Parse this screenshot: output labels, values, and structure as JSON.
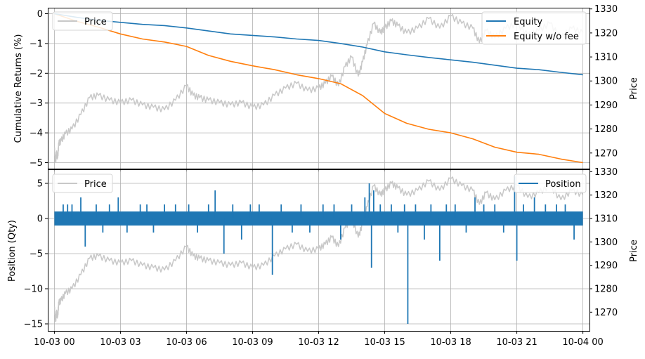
{
  "chart_data": [
    {
      "type": "line",
      "ylabel": "Cumulative Returns (%)",
      "y2label": "Price",
      "ylim": [
        -5.2,
        0.2
      ],
      "y2lim": [
        1263.5,
        1330.5
      ],
      "xlim": [
        -0.3,
        24.3
      ],
      "grid": true,
      "y_ticks": [
        0,
        -1,
        -2,
        -3,
        -4,
        -5
      ],
      "y_tick_labels": [
        "0",
        "−1",
        "−2",
        "−3",
        "−4",
        "−5"
      ],
      "y2_ticks": [
        1270,
        1280,
        1290,
        1300,
        1310,
        1320,
        1330
      ],
      "x_ticks": [
        0,
        3,
        6,
        9,
        12,
        15,
        18,
        21,
        24
      ],
      "legend_left": {
        "placement": "upper-left",
        "entries": [
          "Price"
        ]
      },
      "legend_right": {
        "placement": "upper-right",
        "entries": [
          "Equity",
          "Equity w/o fee"
        ]
      },
      "series": [
        {
          "name": "Equity",
          "axis": "left",
          "color": "#1f77b4",
          "x": [
            0,
            1,
            2,
            3,
            4,
            5,
            6,
            7,
            8,
            9,
            10,
            11,
            12,
            13,
            14,
            15,
            16,
            17,
            18,
            19,
            20,
            21,
            22,
            23,
            24
          ],
          "y": [
            0,
            -0.12,
            -0.22,
            -0.29,
            -0.36,
            -0.4,
            -0.48,
            -0.58,
            -0.68,
            -0.73,
            -0.78,
            -0.85,
            -0.9,
            -1.0,
            -1.12,
            -1.28,
            -1.38,
            -1.47,
            -1.55,
            -1.63,
            -1.73,
            -1.83,
            -1.88,
            -1.97,
            -2.05
          ]
        },
        {
          "name": "Equity w/o fee",
          "axis": "left",
          "color": "#ff7f0e",
          "x": [
            0,
            1,
            2,
            3,
            4,
            5,
            6,
            7,
            8,
            9,
            10,
            11,
            12,
            13,
            14,
            15,
            16,
            17,
            18,
            19,
            20,
            21,
            22,
            23,
            24
          ],
          "y": [
            0,
            -0.25,
            -0.45,
            -0.68,
            -0.85,
            -0.95,
            -1.1,
            -1.4,
            -1.6,
            -1.75,
            -1.88,
            -2.05,
            -2.18,
            -2.35,
            -2.75,
            -3.35,
            -3.68,
            -3.88,
            -4.0,
            -4.2,
            -4.48,
            -4.65,
            -4.72,
            -4.88,
            -5.0
          ]
        },
        {
          "name": "Price",
          "axis": "right",
          "color": "#c8c8c8",
          "x": [
            0,
            0.05,
            0.1,
            0.15,
            0.2,
            0.3,
            0.5,
            0.8,
            1.2,
            1.6,
            2.0,
            2.5,
            3.0,
            3.5,
            4.0,
            4.5,
            5.0,
            5.5,
            6.0,
            6.3,
            6.6,
            7.0,
            7.5,
            8.0,
            8.5,
            9.0,
            9.5,
            10.0,
            10.5,
            11.0,
            11.5,
            12.0,
            12.3,
            12.6,
            12.9,
            13.2,
            13.5,
            13.8,
            14.0,
            14.2,
            14.5,
            14.8,
            15.0,
            15.3,
            15.6,
            16.0,
            16.5,
            17.0,
            17.5,
            18.0,
            18.5,
            19.0,
            19.3,
            19.6,
            20.0,
            20.5,
            21.0,
            21.5,
            22.0,
            22.5,
            23.0,
            23.5,
            24.0
          ],
          "y": [
            1272,
            1266,
            1270,
            1268,
            1274,
            1275,
            1278,
            1280,
            1286,
            1293,
            1294,
            1292,
            1291,
            1292,
            1290,
            1289,
            1288,
            1292,
            1298,
            1294,
            1293,
            1292,
            1291,
            1290,
            1291,
            1289,
            1290,
            1294,
            1297,
            1299,
            1296,
            1297,
            1299,
            1302,
            1298,
            1306,
            1310,
            1302,
            1308,
            1315,
            1324,
            1320,
            1322,
            1325,
            1323,
            1320,
            1322,
            1326,
            1322,
            1327,
            1324,
            1322,
            1316,
            1321,
            1318,
            1322,
            1324,
            1319,
            1321,
            1324,
            1318,
            1322,
            1320
          ]
        }
      ]
    },
    {
      "type": "line",
      "ylabel": "Position (Qty)",
      "y2label": "Price",
      "ylim": [
        -16,
        7
      ],
      "y2lim": [
        1262,
        1331
      ],
      "xlim": [
        -0.3,
        24.3
      ],
      "grid": true,
      "y_ticks": [
        5,
        0,
        -5,
        -10,
        -15
      ],
      "y_tick_labels": [
        "5",
        "0",
        "−5",
        "−10",
        "−15"
      ],
      "y2_ticks": [
        1270,
        1280,
        1290,
        1300,
        1310,
        1320,
        1330
      ],
      "x_ticks": [
        0,
        3,
        6,
        9,
        12,
        15,
        18,
        21,
        24
      ],
      "x_tick_labels": [
        "10-03 00",
        "10-03 03",
        "10-03 06",
        "10-03 09",
        "10-03 12",
        "10-03 15",
        "10-03 18",
        "10-03 21",
        "10-04 00"
      ],
      "legend_left": {
        "placement": "upper-left",
        "entries": [
          "Price"
        ]
      },
      "legend_right": {
        "placement": "upper-right",
        "entries": [
          "Position"
        ]
      },
      "series": [
        {
          "name": "Position",
          "axis": "left",
          "color": "#1f77b4",
          "band": [
            -1,
            1
          ],
          "spikes": [
            {
              "x": 0.4,
              "y": 2
            },
            {
              "x": 0.6,
              "y": 2
            },
            {
              "x": 0.8,
              "y": 2
            },
            {
              "x": 1.2,
              "y": 3
            },
            {
              "x": 1.4,
              "y": -4
            },
            {
              "x": 1.9,
              "y": 2
            },
            {
              "x": 2.2,
              "y": -2
            },
            {
              "x": 2.5,
              "y": 2
            },
            {
              "x": 2.9,
              "y": 3
            },
            {
              "x": 3.3,
              "y": -2
            },
            {
              "x": 3.9,
              "y": 2
            },
            {
              "x": 4.2,
              "y": 2
            },
            {
              "x": 4.5,
              "y": -2
            },
            {
              "x": 5.0,
              "y": 2
            },
            {
              "x": 5.5,
              "y": 2
            },
            {
              "x": 6.1,
              "y": 2
            },
            {
              "x": 6.5,
              "y": -2
            },
            {
              "x": 7.0,
              "y": 2
            },
            {
              "x": 7.3,
              "y": 4
            },
            {
              "x": 7.7,
              "y": -5
            },
            {
              "x": 8.1,
              "y": 2
            },
            {
              "x": 8.5,
              "y": -3
            },
            {
              "x": 8.9,
              "y": 2
            },
            {
              "x": 9.3,
              "y": 2
            },
            {
              "x": 9.9,
              "y": -8
            },
            {
              "x": 10.3,
              "y": 2
            },
            {
              "x": 10.8,
              "y": -2
            },
            {
              "x": 11.2,
              "y": 2
            },
            {
              "x": 11.6,
              "y": -2
            },
            {
              "x": 12.2,
              "y": 2
            },
            {
              "x": 12.7,
              "y": 2
            },
            {
              "x": 13.0,
              "y": -3
            },
            {
              "x": 13.5,
              "y": 2
            },
            {
              "x": 14.1,
              "y": 3
            },
            {
              "x": 14.3,
              "y": 5
            },
            {
              "x": 14.4,
              "y": -7
            },
            {
              "x": 14.5,
              "y": 4
            },
            {
              "x": 14.8,
              "y": 2
            },
            {
              "x": 15.3,
              "y": 2
            },
            {
              "x": 15.6,
              "y": -2
            },
            {
              "x": 15.9,
              "y": 2
            },
            {
              "x": 16.05,
              "y": -15
            },
            {
              "x": 16.4,
              "y": 2
            },
            {
              "x": 16.8,
              "y": -3
            },
            {
              "x": 17.1,
              "y": 2
            },
            {
              "x": 17.5,
              "y": -6
            },
            {
              "x": 17.8,
              "y": 2
            },
            {
              "x": 18.2,
              "y": 2
            },
            {
              "x": 18.7,
              "y": -2
            },
            {
              "x": 19.1,
              "y": 3
            },
            {
              "x": 19.5,
              "y": 2
            },
            {
              "x": 20.0,
              "y": 2
            },
            {
              "x": 20.4,
              "y": -2
            },
            {
              "x": 20.9,
              "y": 6
            },
            {
              "x": 21.0,
              "y": -6
            },
            {
              "x": 21.3,
              "y": 2
            },
            {
              "x": 21.8,
              "y": 3
            },
            {
              "x": 22.3,
              "y": 2
            },
            {
              "x": 22.8,
              "y": 2
            },
            {
              "x": 23.2,
              "y": 2
            },
            {
              "x": 23.6,
              "y": -3
            }
          ]
        },
        {
          "name": "Price",
          "axis": "right",
          "color": "#c8c8c8",
          "same_as_top": true
        }
      ]
    }
  ]
}
